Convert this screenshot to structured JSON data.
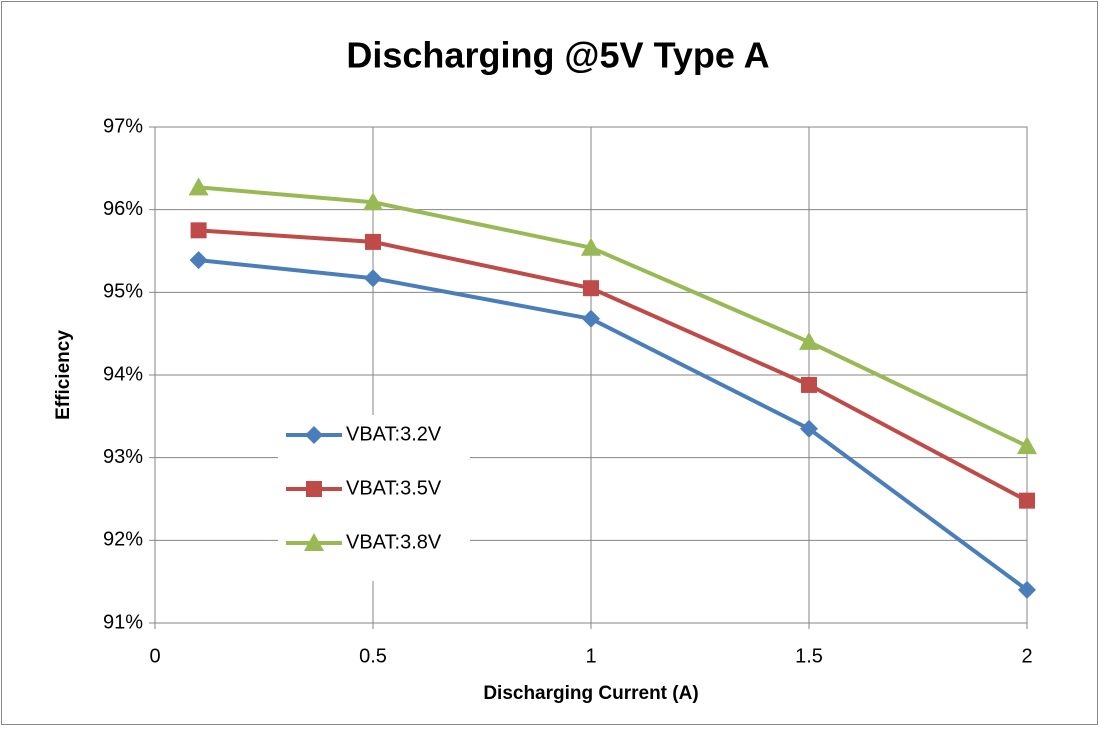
{
  "chart_data": {
    "type": "line",
    "title": "Discharging @5V Type A",
    "x_label": "Discharging Current (A)",
    "y_label": "Efficiency",
    "x": [
      0.1,
      0.5,
      1,
      1.5,
      2
    ],
    "series": [
      {
        "name": "VBAT:3.2V",
        "color": "#4a7ebb",
        "marker": "diamond",
        "values": [
          95.39,
          95.17,
          94.68,
          93.35,
          91.4
        ]
      },
      {
        "name": "VBAT:3.5V",
        "color": "#be4b48",
        "marker": "square",
        "values": [
          95.75,
          95.61,
          95.05,
          93.88,
          92.48
        ]
      },
      {
        "name": "VBAT:3.8V",
        "color": "#98b954",
        "marker": "triangle",
        "values": [
          96.27,
          96.09,
          95.54,
          94.4,
          93.14
        ]
      }
    ],
    "xlim": [
      0,
      2
    ],
    "xticks": [
      0,
      0.5,
      1,
      1.5,
      2
    ],
    "ylim": [
      91,
      97
    ],
    "yticks": [
      {
        "value": 91,
        "label": "91%"
      },
      {
        "value": 92,
        "label": "92%"
      },
      {
        "value": 93,
        "label": "93%"
      },
      {
        "value": 94,
        "label": "94%"
      },
      {
        "value": 95,
        "label": "95%"
      },
      {
        "value": 96,
        "label": "96%"
      },
      {
        "value": 97,
        "label": "97%"
      }
    ],
    "grid": true,
    "legend": "left"
  }
}
